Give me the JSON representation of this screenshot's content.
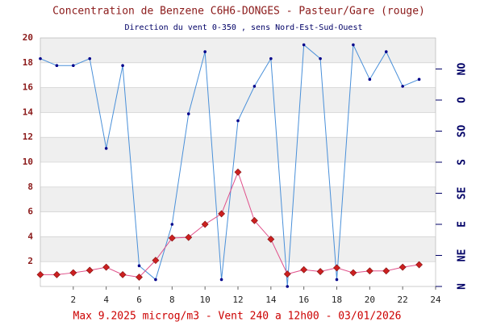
{
  "chart_data": {
    "type": "line",
    "title": "Concentration de Benzene C6H6-DONGES - Pasteur/Gare (rouge)",
    "subtitle": "Direction du vent 0-350 , sens Nord-Est-Sud-Ouest",
    "footer": "Max 9.2025 microg/m3 - Vent 240  a 12h00 - 03/01/2026",
    "x": [
      0,
      1,
      2,
      3,
      4,
      5,
      6,
      7,
      8,
      9,
      10,
      11,
      12,
      13,
      14,
      15,
      16,
      17,
      18,
      19,
      20,
      21,
      22,
      23
    ],
    "series": [
      {
        "name": null,
        "color": "#4a90d9",
        "axis": "y2",
        "values": [
          330,
          320,
          320,
          330,
          200,
          320,
          30,
          10,
          90,
          250,
          340,
          10,
          240,
          290,
          330,
          0,
          350,
          330,
          10,
          350,
          300,
          340,
          290,
          300
        ]
      },
      {
        "name": null,
        "color": "#e0508a",
        "values": [
          0.95,
          0.95,
          1.1,
          1.3,
          1.55,
          0.95,
          0.75,
          2.1,
          3.9,
          3.95,
          5.0,
          5.85,
          9.2025,
          5.3,
          3.8,
          1.0,
          1.35,
          1.2,
          1.5,
          1.1,
          1.25,
          1.25,
          1.55,
          1.75
        ]
      }
    ],
    "xlim": [
      0,
      24
    ],
    "xticks": [
      2,
      4,
      6,
      8,
      10,
      12,
      14,
      16,
      18,
      20,
      22,
      24
    ],
    "ylim": [
      0,
      20
    ],
    "yticks": [
      2,
      4,
      6,
      8,
      10,
      12,
      14,
      16,
      18,
      20
    ],
    "y2lim": [
      0,
      360
    ],
    "y2ticks": [
      {
        "value": 0,
        "label": "N"
      },
      {
        "value": 45,
        "label": "NE"
      },
      {
        "value": 90,
        "label": "E"
      },
      {
        "value": 135,
        "label": "SE"
      },
      {
        "value": 180,
        "label": "S"
      },
      {
        "value": 225,
        "label": "SO"
      },
      {
        "value": 270,
        "label": "O"
      },
      {
        "value": 315,
        "label": "NO"
      }
    ],
    "grid": true
  }
}
